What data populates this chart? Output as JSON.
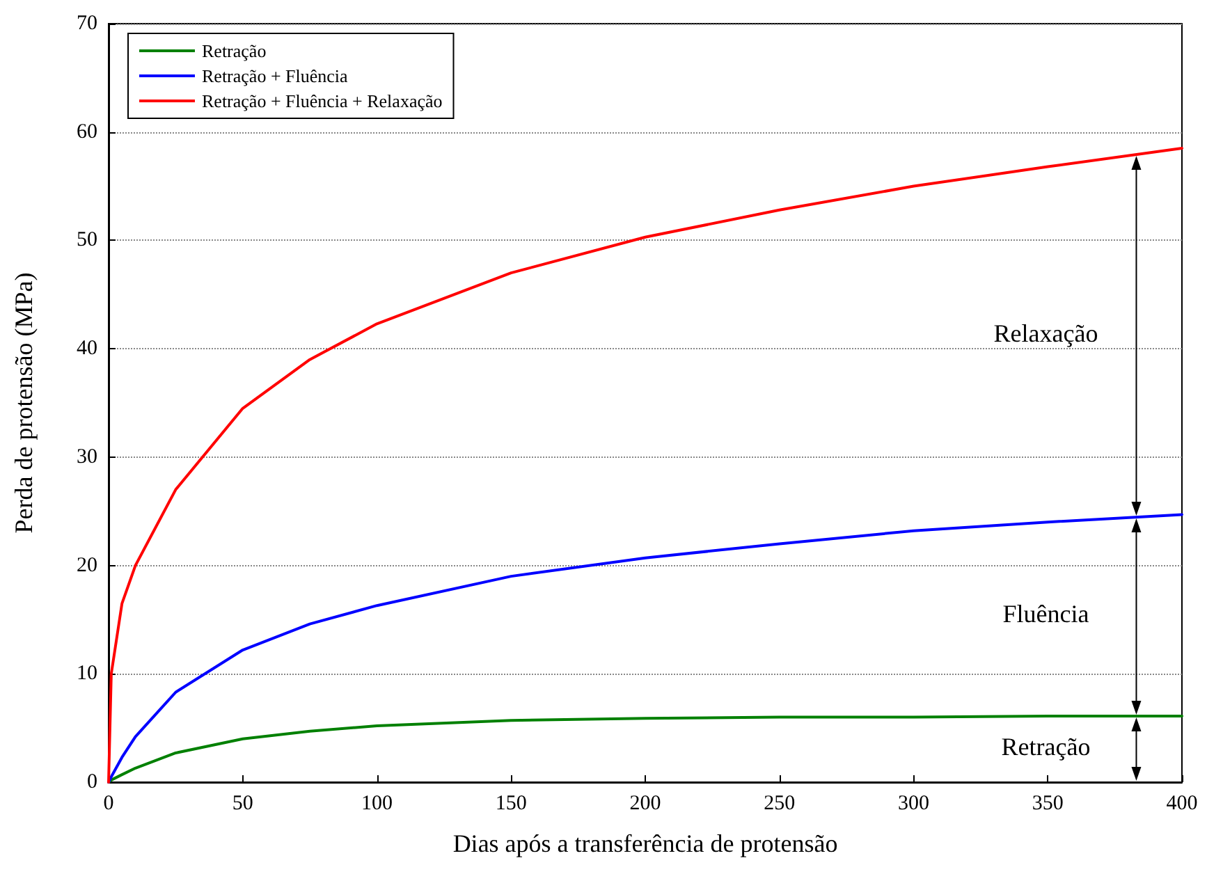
{
  "chart_data": {
    "type": "line",
    "xlabel": "Dias após a transferência de protensão",
    "ylabel": "Perda de protensão (MPa)",
    "x": [
      0,
      1,
      5,
      10,
      25,
      50,
      75,
      100,
      150,
      200,
      250,
      300,
      350,
      400
    ],
    "series": [
      {
        "name": "Retração",
        "color": "#008000",
        "values": [
          0,
          0.2,
          0.7,
          1.3,
          2.7,
          4.0,
          4.7,
          5.2,
          5.7,
          5.9,
          6.0,
          6.0,
          6.1,
          6.1
        ]
      },
      {
        "name": "Retração + Fluência",
        "color": "#0000ff",
        "values": [
          0,
          0.5,
          2.3,
          4.2,
          8.3,
          12.2,
          14.6,
          16.3,
          19.0,
          20.7,
          22.0,
          23.2,
          24.0,
          24.7
        ]
      },
      {
        "name": "Retração + Fluência + Relaxação",
        "color": "#ff0000",
        "values": [
          0,
          10,
          16.5,
          20,
          27,
          34.5,
          39,
          42.3,
          47,
          50.3,
          52.8,
          55,
          56.8,
          58.5
        ]
      }
    ],
    "xlim": [
      0,
      400
    ],
    "xticks": [
      0,
      50,
      100,
      150,
      200,
      250,
      300,
      350,
      400
    ],
    "ylim": [
      0,
      70
    ],
    "yticks": [
      0,
      10,
      20,
      30,
      40,
      50,
      60,
      70
    ],
    "grid": "y",
    "legend": "top left",
    "marker": "none",
    "line_style": "solid",
    "annotations": [
      "Relaxação",
      "Fluência",
      "Retração"
    ]
  }
}
